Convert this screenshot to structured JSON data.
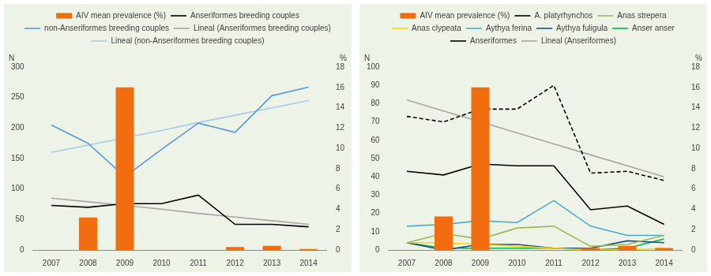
{
  "chart_data": [
    {
      "type": "bar",
      "categories": [
        "2007",
        "2008",
        "2009",
        "2010",
        "2011",
        "2012",
        "2013",
        "2014"
      ],
      "y_label": "N",
      "y2_label": "%",
      "ylim": [
        0,
        300
      ],
      "yticks": [
        0,
        50,
        100,
        150,
        200,
        250,
        300
      ],
      "y2lim": [
        0,
        18
      ],
      "y2ticks": [
        0,
        2,
        4,
        6,
        8,
        10,
        12,
        14,
        16,
        18
      ],
      "grid": false,
      "legend": "top",
      "series": [
        {
          "name": "AIV mean prevalence (%)",
          "type": "bar",
          "axis": "y2",
          "color": "#f26d0f",
          "values": [
            0,
            3.2,
            16,
            0,
            0,
            0.3,
            0.4,
            0.1
          ]
        },
        {
          "name": "Anseriformes breeding couples",
          "type": "line",
          "color": "#000000",
          "line_style": "solid",
          "values": [
            73,
            70,
            76,
            76,
            90,
            42,
            42,
            38
          ]
        },
        {
          "name": "non-Anseriformes breeding couples",
          "type": "line",
          "color": "#5b9bd5",
          "line_style": "solid",
          "values": [
            205,
            175,
            120,
            165,
            208,
            193,
            253,
            267
          ]
        },
        {
          "name": "Lineal (Anseriformes breeding couples)",
          "type": "line",
          "color": "#a6a6a6",
          "line_style": "solid",
          "values": [
            85,
            79,
            73,
            67,
            60,
            54,
            48,
            42
          ]
        },
        {
          "name": "Lineal (non-Anseriformes breeding couples)",
          "type": "line",
          "color": "#a9c8ea",
          "line_style": "solid",
          "values": [
            160,
            172,
            184,
            196,
            209,
            221,
            233,
            245
          ]
        }
      ]
    },
    {
      "type": "bar",
      "categories": [
        "2007",
        "2008",
        "2009",
        "2010",
        "2011",
        "2012",
        "2013",
        "2014"
      ],
      "y_label": "N",
      "y2_label": "%",
      "ylim": [
        0,
        100
      ],
      "yticks": [
        0,
        10,
        20,
        30,
        40,
        50,
        60,
        70,
        80,
        90,
        100
      ],
      "y2lim": [
        0,
        18
      ],
      "y2ticks": [
        0,
        2,
        4,
        6,
        8,
        10,
        12,
        14,
        16,
        18
      ],
      "grid": false,
      "legend": "top",
      "series": [
        {
          "name": "AIV mean prevalence (%)",
          "type": "bar",
          "axis": "y2",
          "color": "#f26d0f",
          "values": [
            0,
            3.3,
            16,
            0,
            0,
            0.2,
            0.4,
            0.2
          ]
        },
        {
          "name": "A. platyrhynchos",
          "type": "line",
          "color": "#000000",
          "line_style": "solid",
          "values": [
            43,
            41,
            47,
            46,
            46,
            22,
            24,
            14
          ]
        },
        {
          "name": "Anas strepera",
          "type": "line",
          "color": "#9bbb59",
          "line_style": "solid",
          "values": [
            4,
            9,
            6,
            12,
            13,
            2,
            3,
            8
          ]
        },
        {
          "name": "Anas clypeata",
          "type": "line",
          "color": "#ffd800",
          "line_style": "solid",
          "values": [
            4,
            4,
            3,
            2,
            1,
            0,
            0,
            1
          ]
        },
        {
          "name": "Aythya ferina",
          "type": "line",
          "color": "#4bacc6",
          "line_style": "solid",
          "values": [
            13,
            14,
            16,
            15,
            27,
            13,
            8,
            8
          ]
        },
        {
          "name": "Aythya fuligula",
          "type": "line",
          "color": "#1f497d",
          "line_style": "solid",
          "values": [
            4,
            0,
            3,
            3,
            1,
            1,
            5,
            4
          ]
        },
        {
          "name": "Anser anser",
          "type": "line",
          "color": "#00b050",
          "line_style": "solid",
          "values": [
            4,
            1,
            1,
            1,
            1,
            0,
            1,
            6
          ]
        },
        {
          "name": "Anseriformes",
          "type": "line",
          "color": "#000000",
          "line_style": "dashed",
          "values": [
            73,
            70,
            77,
            77,
            90,
            42,
            43,
            38
          ]
        },
        {
          "name": "Lineal (Anseriformes)",
          "type": "line",
          "color": "#a6a6a6",
          "line_style": "solid",
          "values": [
            82,
            76,
            70,
            64,
            58,
            52,
            46,
            40
          ]
        }
      ]
    }
  ]
}
